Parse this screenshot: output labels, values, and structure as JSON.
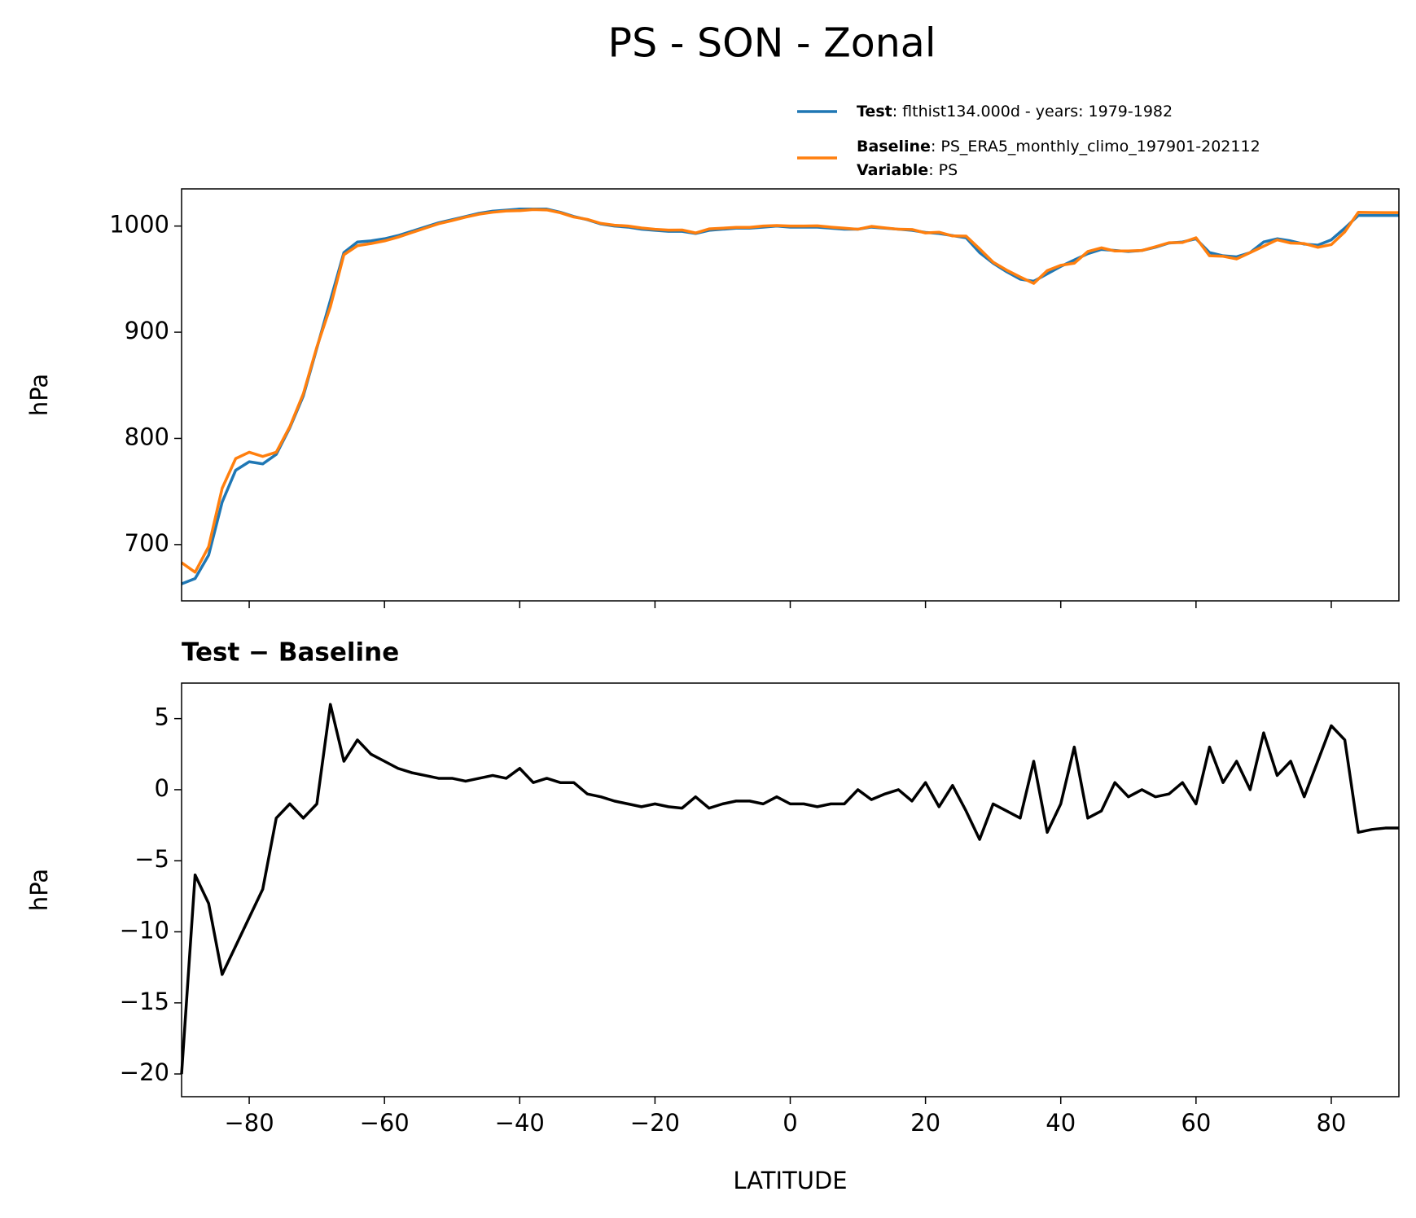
{
  "chart_data": [
    {
      "type": "line",
      "title": "PS - SON - Zonal",
      "ylabel": "hPa",
      "x": [
        -90,
        -88,
        -86,
        -84,
        -82,
        -80,
        -78,
        -76,
        -74,
        -72,
        -70,
        -68,
        -66,
        -64,
        -62,
        -60,
        -58,
        -56,
        -54,
        -52,
        -50,
        -48,
        -46,
        -44,
        -42,
        -40,
        -38,
        -36,
        -34,
        -32,
        -30,
        -28,
        -26,
        -24,
        -22,
        -20,
        -18,
        -16,
        -14,
        -12,
        -10,
        -8,
        -6,
        -4,
        -2,
        0,
        2,
        4,
        6,
        8,
        10,
        12,
        14,
        16,
        18,
        20,
        22,
        24,
        26,
        28,
        30,
        32,
        34,
        36,
        38,
        40,
        42,
        44,
        46,
        48,
        50,
        52,
        54,
        56,
        58,
        60,
        62,
        64,
        66,
        68,
        70,
        72,
        74,
        76,
        78,
        80,
        82,
        84,
        86,
        88,
        90
      ],
      "series": [
        {
          "name": "Test",
          "detail": ": flthist134.000d - years: 1979-1982",
          "color": "#1f77b4",
          "values": [
            663,
            668,
            690,
            740,
            770,
            778,
            776,
            785,
            810,
            840,
            885,
            930,
            975,
            985,
            986,
            988,
            991,
            995,
            999,
            1003,
            1006,
            1009,
            1012,
            1014,
            1015,
            1016,
            1016,
            1016,
            1013,
            1009,
            1006,
            1002,
            1000,
            999,
            997,
            996,
            995,
            995,
            993,
            996,
            997,
            998,
            998,
            999,
            1000,
            999,
            999,
            999,
            998,
            997,
            997,
            999,
            998,
            997,
            996,
            994,
            993,
            991,
            989,
            975,
            965,
            957,
            950,
            948,
            955,
            962,
            968,
            974,
            978,
            977,
            976,
            977,
            980,
            984,
            985,
            988,
            975,
            972,
            971,
            975,
            985,
            988,
            986,
            983,
            982,
            987,
            998,
            1010,
            1010,
            1010,
            1010
          ]
        },
        {
          "name": "Baseline",
          "detail": ": PS_ERA5_monthly_climo_197901-202112",
          "color": "#ff7f0e",
          "values": [
            683,
            674,
            698,
            753,
            781,
            787,
            783,
            787,
            811,
            842,
            886,
            924,
            973,
            981.5,
            983.5,
            986,
            989.5,
            993.8,
            998,
            1002.2,
            1005.2,
            1008.4,
            1011.2,
            1013,
            1014.2,
            1014.5,
            1015.5,
            1015.2,
            1012.5,
            1008.5,
            1006.3,
            1002.5,
            1000.8,
            1000,
            998.2,
            997,
            996.2,
            996.3,
            993.5,
            997.3,
            998,
            998.8,
            998.8,
            1000,
            1000.5,
            1000,
            1000,
            1000.2,
            999,
            998,
            997,
            999.7,
            998.3,
            997,
            996.8,
            993.5,
            994.2,
            990.7,
            990.5,
            978.5,
            966,
            958.5,
            952,
            946,
            958,
            963,
            965,
            976,
            979.5,
            976.5,
            976.5,
            977,
            980.5,
            984.3,
            984.5,
            989,
            972,
            971.5,
            969,
            975,
            981,
            987,
            984,
            983.5,
            980,
            982.5,
            994.5,
            1013,
            1012.8,
            1012.7,
            1012.7
          ]
        }
      ],
      "annotation": {
        "label": "Variable",
        "text": ": PS"
      },
      "xlim": [
        -90,
        90
      ],
      "xticks": [
        -80,
        -60,
        -40,
        -20,
        0,
        20,
        40,
        60,
        80
      ],
      "show_xticklabels": false,
      "ylim": [
        647,
        1035
      ],
      "yticks": [
        700,
        800,
        900,
        1000
      ]
    },
    {
      "type": "line",
      "title": "Test − Baseline",
      "ylabel": "hPa",
      "xlabel": "LATITUDE",
      "color": "#000000",
      "x": [
        -90,
        -88,
        -86,
        -84,
        -82,
        -80,
        -78,
        -76,
        -74,
        -72,
        -70,
        -68,
        -66,
        -64,
        -62,
        -60,
        -58,
        -56,
        -54,
        -52,
        -50,
        -48,
        -46,
        -44,
        -42,
        -40,
        -38,
        -36,
        -34,
        -32,
        -30,
        -28,
        -26,
        -24,
        -22,
        -20,
        -18,
        -16,
        -14,
        -12,
        -10,
        -8,
        -6,
        -4,
        -2,
        0,
        2,
        4,
        6,
        8,
        10,
        12,
        14,
        16,
        18,
        20,
        22,
        24,
        26,
        28,
        30,
        32,
        34,
        36,
        38,
        40,
        42,
        44,
        46,
        48,
        50,
        52,
        54,
        56,
        58,
        60,
        62,
        64,
        66,
        68,
        70,
        72,
        74,
        76,
        78,
        80,
        82,
        84,
        86,
        88,
        90
      ],
      "values": [
        -20,
        -6,
        -8,
        -13,
        -11,
        -9,
        -7,
        -2,
        -1,
        -2,
        -1,
        6,
        2,
        3.5,
        2.5,
        2,
        1.5,
        1.2,
        1,
        0.8,
        0.8,
        0.6,
        0.8,
        1,
        0.8,
        1.5,
        0.5,
        0.8,
        0.5,
        0.5,
        -0.3,
        -0.5,
        -0.8,
        -1,
        -1.2,
        -1,
        -1.2,
        -1.3,
        -0.5,
        -1.3,
        -1,
        -0.8,
        -0.8,
        -1,
        -0.5,
        -1,
        -1,
        -1.2,
        -1,
        -1,
        0,
        -0.7,
        -0.3,
        0,
        -0.8,
        0.5,
        -1.2,
        0.3,
        -1.5,
        -3.5,
        -1,
        -1.5,
        -2,
        2,
        -3,
        -1,
        3,
        -2,
        -1.5,
        0.5,
        -0.5,
        0,
        -0.5,
        -0.3,
        0.5,
        -1,
        3,
        0.5,
        2,
        0,
        4,
        1,
        2,
        -0.5,
        2,
        4.5,
        3.5,
        -3,
        -2.8,
        -2.7,
        -2.7
      ],
      "xlim": [
        -90,
        90
      ],
      "xticks": [
        {
          "value": -80,
          "label": "−80"
        },
        {
          "value": -60,
          "label": "−60"
        },
        {
          "value": -40,
          "label": "−40"
        },
        {
          "value": -20,
          "label": "−20"
        },
        0,
        20,
        40,
        60,
        80
      ],
      "show_xticklabels": true,
      "ylim": [
        -21.6,
        7.5
      ],
      "yticks": [
        {
          "value": -20,
          "label": "−20"
        },
        {
          "value": -15,
          "label": "−15"
        },
        {
          "value": -10,
          "label": "−10"
        },
        {
          "value": -5,
          "label": "−5"
        },
        0,
        5
      ]
    }
  ]
}
